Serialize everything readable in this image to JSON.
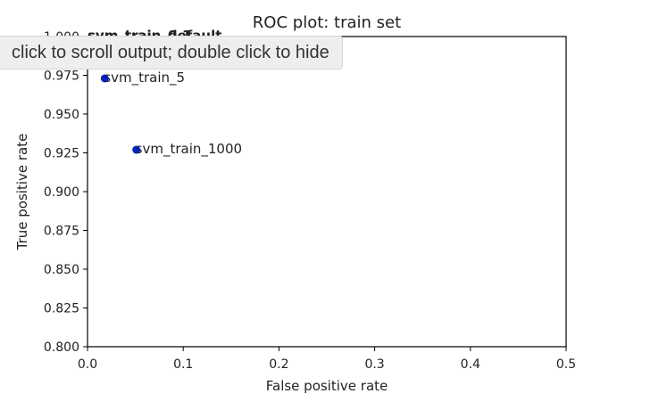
{
  "output_tooltip": "click to scroll output; double click to hide",
  "chart_data": {
    "type": "scatter",
    "title": "ROC plot: train set",
    "xlabel": "False positive rate",
    "ylabel": "True positive rate",
    "xlim": [
      0.0,
      0.5
    ],
    "ylim": [
      0.8,
      1.0
    ],
    "xticks": [
      "0.0",
      "0.1",
      "0.2",
      "0.3",
      "0.4",
      "0.5"
    ],
    "yticks": [
      "0.800",
      "0.825",
      "0.850",
      "0.875",
      "0.900",
      "0.925",
      "0.950",
      "0.975",
      "1.000"
    ],
    "grid": false,
    "marker_color": "#0022dd",
    "points": [
      {
        "label": "svm_train_5",
        "x": 0.018,
        "y": 0.973
      },
      {
        "label": "svm_train_1000",
        "x": 0.051,
        "y": 0.927
      }
    ],
    "overlapping_labels": [
      {
        "label": "svm_train_0.1",
        "x": 0.0,
        "y": 1.0
      },
      {
        "label": "svm_train_default",
        "x": 0.0,
        "y": 1.0
      }
    ]
  }
}
